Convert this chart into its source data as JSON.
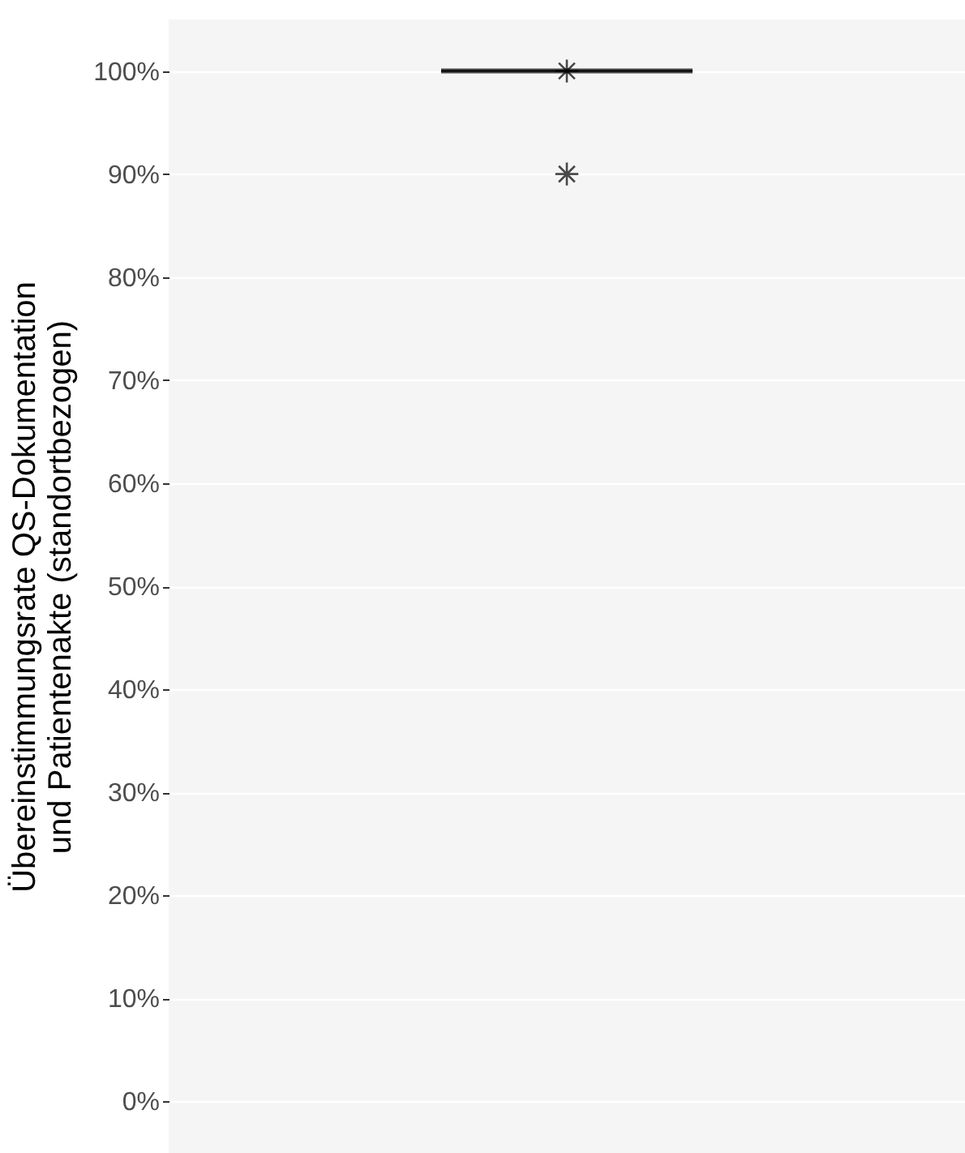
{
  "chart_data": {
    "type": "box",
    "ylabel": "Übereinstimmungsrate QS-Dokumentation\nund Patientenakte (standortbezogen)",
    "categories": [
      null
    ],
    "boxes": [
      {
        "low": 100,
        "q1": 100,
        "median": 100,
        "q3": 100,
        "high": 100,
        "mean": 100,
        "outliers": [
          90
        ]
      }
    ],
    "ylim": [
      -5,
      105
    ],
    "yticks": [
      {
        "value": 0,
        "label": "0%"
      },
      {
        "value": 10,
        "label": "10%"
      },
      {
        "value": 20,
        "label": "20%"
      },
      {
        "value": 30,
        "label": "30%"
      },
      {
        "value": 40,
        "label": "40%"
      },
      {
        "value": 50,
        "label": "50%"
      },
      {
        "value": 60,
        "label": "60%"
      },
      {
        "value": 70,
        "label": "70%"
      },
      {
        "value": 80,
        "label": "80%"
      },
      {
        "value": 90,
        "label": "90%"
      },
      {
        "value": 100,
        "label": "100%"
      }
    ],
    "grid": "y",
    "tick_labels": "y"
  }
}
